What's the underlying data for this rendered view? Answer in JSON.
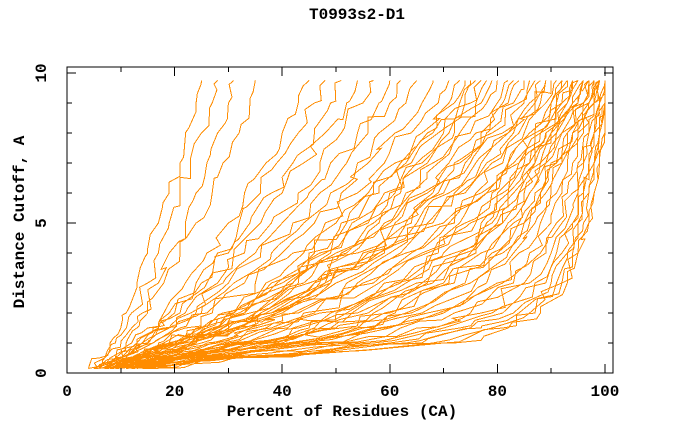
{
  "page": {
    "background": "#ffffff"
  },
  "chart_data": {
    "type": "line",
    "title": "T0993s2-D1",
    "xlabel": "Percent of Residues (CA)",
    "ylabel": "Distance Cutoff, A",
    "xlim": [
      0,
      101.5
    ],
    "ylim": [
      0,
      10.2
    ],
    "x_ticks_major": [
      0,
      20,
      40,
      60,
      80,
      100
    ],
    "x_ticks_minor": [
      10,
      30,
      50,
      70,
      90
    ],
    "y_ticks_major": [
      0,
      5,
      10
    ],
    "y_ticks_minor": [
      1,
      2,
      3,
      4,
      6,
      7,
      8,
      9
    ],
    "grid": false,
    "legend": "none",
    "line_color": "#ff8c00",
    "axis_color": "#000000",
    "cutoff_levels": [
      0.15,
      0.5,
      1,
      1.5,
      2,
      3,
      4,
      5,
      6,
      7,
      8,
      9,
      9.75
    ],
    "series_note": "each series = percent of residues (x) at each distance cutoff level above",
    "series": [
      [
        4,
        6,
        8,
        10,
        11,
        13,
        15,
        17,
        19,
        21,
        22,
        24,
        25
      ],
      [
        4,
        7,
        9,
        11,
        12,
        15,
        17,
        19,
        21,
        23,
        25,
        27,
        28
      ],
      [
        5,
        7,
        10,
        12,
        14,
        17,
        19,
        22,
        24,
        26,
        28,
        30,
        31
      ],
      [
        5,
        8,
        11,
        13,
        15,
        18,
        21,
        24,
        27,
        29,
        32,
        34,
        35
      ],
      [
        5,
        9,
        12,
        15,
        18,
        22,
        26,
        30,
        33,
        37,
        40,
        43,
        45
      ],
      [
        5,
        9,
        13,
        16,
        19,
        24,
        28,
        32,
        36,
        39,
        43,
        46,
        48
      ],
      [
        6,
        9,
        13,
        17,
        20,
        25,
        30,
        34,
        38,
        42,
        46,
        49,
        51
      ],
      [
        6,
        10,
        14,
        17,
        21,
        26,
        31,
        36,
        40,
        44,
        48,
        52,
        54
      ],
      [
        6,
        10,
        14,
        18,
        22,
        28,
        33,
        38,
        43,
        47,
        51,
        55,
        57
      ],
      [
        6,
        10,
        15,
        19,
        23,
        29,
        35,
        40,
        45,
        49,
        54,
        58,
        60
      ],
      [
        6,
        10,
        15,
        19,
        24,
        30,
        36,
        42,
        47,
        52,
        56,
        60,
        62
      ],
      [
        7,
        11,
        16,
        20,
        25,
        31,
        38,
        44,
        49,
        54,
        58,
        63,
        65
      ],
      [
        7,
        11,
        16,
        21,
        26,
        33,
        40,
        46,
        51,
        56,
        61,
        66,
        68
      ],
      [
        7,
        11,
        17,
        22,
        27,
        35,
        42,
        48,
        54,
        59,
        64,
        69,
        71
      ],
      [
        7,
        12,
        18,
        24,
        29,
        37,
        44,
        50,
        56,
        61,
        66,
        71,
        73
      ],
      [
        7,
        12,
        19,
        25,
        30,
        38,
        45,
        51,
        57,
        62,
        67,
        72,
        74
      ],
      [
        7,
        12,
        19,
        25,
        31,
        39,
        46,
        52,
        58,
        63,
        68,
        73,
        75
      ],
      [
        7,
        12,
        20,
        26,
        31,
        40,
        47,
        53,
        59,
        64,
        69,
        74,
        76
      ],
      [
        8,
        13,
        20,
        26,
        32,
        41,
        48,
        55,
        60,
        65,
        70,
        75,
        77
      ],
      [
        8,
        13,
        20,
        27,
        33,
        42,
        49,
        56,
        61,
        66,
        71,
        76,
        78
      ],
      [
        8,
        13,
        21,
        27,
        33,
        42,
        50,
        57,
        62,
        67,
        72,
        77,
        79
      ],
      [
        8,
        13,
        21,
        28,
        34,
        43,
        51,
        58,
        63,
        68,
        73,
        78,
        80
      ],
      [
        8,
        13,
        21,
        28,
        35,
        44,
        52,
        59,
        64,
        69,
        75,
        80,
        82
      ],
      [
        8,
        13,
        22,
        29,
        35,
        45,
        53,
        60,
        66,
        71,
        76,
        81,
        83
      ],
      [
        8,
        14,
        22,
        29,
        36,
        46,
        54,
        61,
        67,
        72,
        77,
        82,
        84
      ],
      [
        8,
        14,
        22,
        30,
        36,
        46,
        55,
        62,
        68,
        73,
        78,
        83,
        85
      ],
      [
        9,
        14,
        23,
        30,
        37,
        47,
        56,
        63,
        69,
        74,
        79,
        84,
        86
      ],
      [
        9,
        14,
        23,
        31,
        38,
        48,
        57,
        64,
        70,
        75,
        81,
        85,
        87
      ],
      [
        9,
        14,
        23,
        31,
        38,
        48,
        58,
        65,
        71,
        76,
        82,
        86,
        88
      ],
      [
        9,
        14,
        24,
        31,
        38,
        49,
        58,
        66,
        72,
        77,
        82,
        87,
        89
      ],
      [
        9,
        14,
        24,
        32,
        39,
        49,
        59,
        67,
        73,
        78,
        83,
        87,
        89
      ],
      [
        9,
        14,
        24,
        32,
        39,
        50,
        60,
        68,
        74,
        79,
        84,
        88,
        90
      ],
      [
        9,
        15,
        25,
        33,
        40,
        52,
        62,
        70,
        76,
        81,
        85,
        89,
        91
      ],
      [
        9,
        15,
        26,
        34,
        42,
        54,
        63,
        71,
        77,
        82,
        86,
        90,
        92
      ],
      [
        9,
        16,
        27,
        35,
        43,
        55,
        64,
        72,
        78,
        82,
        86,
        90,
        92
      ],
      [
        10,
        16,
        28,
        37,
        44,
        57,
        66,
        73,
        78,
        83,
        87,
        91,
        93
      ],
      [
        10,
        17,
        29,
        38,
        46,
        58,
        67,
        74,
        79,
        84,
        87,
        91,
        93
      ],
      [
        10,
        17,
        30,
        39,
        47,
        59,
        68,
        75,
        80,
        84,
        88,
        92,
        94
      ],
      [
        10,
        18,
        31,
        41,
        49,
        61,
        69,
        76,
        81,
        85,
        88,
        92,
        94
      ],
      [
        10,
        18,
        32,
        42,
        50,
        62,
        70,
        77,
        82,
        86,
        89,
        93,
        95
      ],
      [
        11,
        19,
        33,
        43,
        52,
        63,
        72,
        78,
        82,
        86,
        89,
        93,
        95
      ],
      [
        11,
        19,
        34,
        45,
        53,
        65,
        73,
        79,
        83,
        87,
        90,
        94,
        96
      ],
      [
        11,
        20,
        35,
        46,
        54,
        66,
        74,
        80,
        84,
        87,
        90,
        94,
        96
      ],
      [
        11,
        20,
        36,
        47,
        56,
        67,
        75,
        81,
        84,
        88,
        91,
        95,
        96
      ],
      [
        11,
        20,
        37,
        49,
        57,
        68,
        76,
        81,
        85,
        88,
        91,
        95,
        97
      ],
      [
        12,
        21,
        38,
        50,
        59,
        70,
        77,
        82,
        86,
        89,
        92,
        96,
        97
      ],
      [
        12,
        21,
        39,
        51,
        60,
        71,
        78,
        83,
        86,
        89,
        92,
        96,
        97
      ],
      [
        12,
        21,
        40,
        53,
        61,
        72,
        79,
        84,
        87,
        90,
        93,
        96,
        98
      ],
      [
        12,
        22,
        41,
        54,
        63,
        74,
        80,
        85,
        88,
        91,
        93,
        97,
        98
      ],
      [
        12,
        22,
        42,
        55,
        64,
        75,
        81,
        85,
        88,
        91,
        94,
        97,
        98
      ],
      [
        12,
        22,
        43,
        57,
        66,
        76,
        82,
        86,
        89,
        92,
        94,
        97,
        99
      ],
      [
        12,
        23,
        44,
        58,
        67,
        78,
        83,
        87,
        90,
        92,
        95,
        98,
        99
      ],
      [
        12,
        23,
        45,
        59,
        69,
        80,
        84,
        88,
        91,
        93,
        95,
        98,
        99
      ],
      [
        12,
        23,
        46,
        60,
        70,
        81,
        86,
        90,
        92,
        94,
        96,
        98,
        99
      ],
      [
        12,
        24,
        48,
        62,
        72,
        83,
        88,
        91,
        93,
        95,
        97,
        98,
        99
      ],
      [
        12,
        25,
        51,
        65,
        75,
        85,
        89,
        92,
        94,
        96,
        97,
        99,
        100
      ],
      [
        13,
        26,
        54,
        68,
        77,
        86,
        90,
        93,
        95,
        96,
        98,
        99,
        100
      ],
      [
        13,
        27,
        57,
        70,
        79,
        87,
        91,
        94,
        95,
        97,
        98,
        99,
        100
      ],
      [
        14,
        28,
        60,
        73,
        81,
        89,
        92,
        94,
        96,
        97,
        98,
        100,
        100
      ],
      [
        14,
        29,
        63,
        75,
        83,
        90,
        93,
        95,
        96,
        98,
        99,
        100,
        100
      ],
      [
        15,
        30,
        66,
        77,
        84,
        91,
        93,
        95,
        97,
        98,
        99,
        100,
        100
      ],
      [
        15,
        31,
        68,
        79,
        86,
        92,
        94,
        96,
        97,
        98,
        99,
        100,
        100
      ],
      [
        16,
        31,
        70,
        81,
        87,
        92,
        95,
        97,
        98,
        99,
        100,
        100,
        100
      ],
      [
        16,
        32,
        72,
        82,
        88,
        93,
        95,
        97,
        98,
        99,
        100,
        100,
        100
      ]
    ]
  }
}
